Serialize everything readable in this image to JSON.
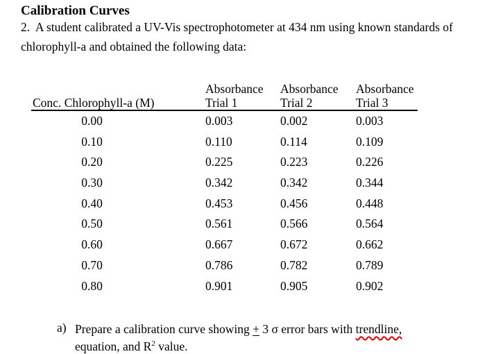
{
  "title": "Calibration Curves",
  "problem": {
    "line1": "2.  A student calibrated a UV-Vis spectrophotometer at 434 nm using known standards of",
    "line2": "chlorophyll-a and obtained the following data:"
  },
  "table": {
    "conc_header": "Conc. Chlorophyll-a (M)",
    "absorbance_label": "Absorbance",
    "trial_headers": [
      "Trial 1",
      "Trial 2",
      "Trial 3"
    ],
    "rows": [
      {
        "conc": "0.00",
        "trial1": "0.003",
        "trial2": "0.002",
        "trial3": "0.003"
      },
      {
        "conc": "0.10",
        "trial1": "0.110",
        "trial2": "0.114",
        "trial3": "0.109"
      },
      {
        "conc": "0.20",
        "trial1": "0.225",
        "trial2": "0.223",
        "trial3": "0.226"
      },
      {
        "conc": "0.30",
        "trial1": "0.342",
        "trial2": "0.342",
        "trial3": "0.344"
      },
      {
        "conc": "0.40",
        "trial1": "0.453",
        "trial2": "0.456",
        "trial3": "0.448"
      },
      {
        "conc": "0.50",
        "trial1": "0.561",
        "trial2": "0.566",
        "trial3": "0.564"
      },
      {
        "conc": "0.60",
        "trial1": "0.667",
        "trial2": "0.672",
        "trial3": "0.662"
      },
      {
        "conc": "0.70",
        "trial1": "0.786",
        "trial2": "0.782",
        "trial3": "0.789"
      },
      {
        "conc": "0.80",
        "trial1": "0.901",
        "trial2": "0.905",
        "trial3": "0.902"
      }
    ]
  },
  "question_a": {
    "label": "a)",
    "line1_seg1": "Prepare a calibration curve showing ",
    "plus_minus": "+",
    "line1_seg2": " 3 σ error bars with ",
    "flagged_word": "trendline,",
    "line2_seg1": "equation, and R",
    "r_exponent": "2",
    "line2_seg2": " value."
  },
  "colors": {
    "text": "#000000",
    "spellcheck_underline": "#e60000",
    "background": "#ffffff"
  }
}
